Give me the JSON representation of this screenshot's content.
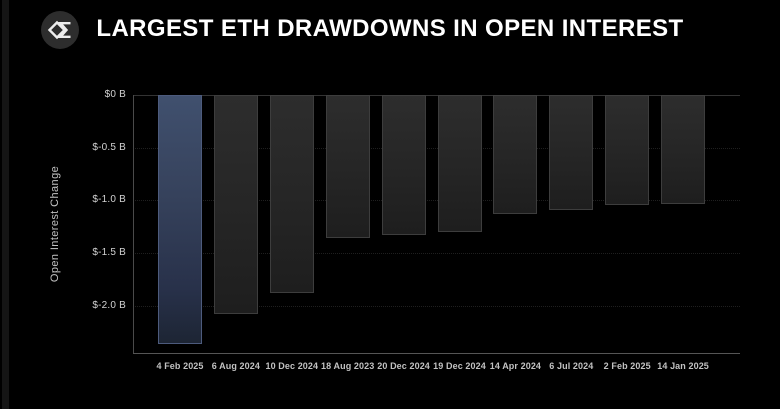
{
  "header": {
    "title": "LARGEST ETH DRAWDOWNS IN OPEN INTEREST",
    "logo_icon": "sigma-diamond-logo"
  },
  "chart_data": {
    "type": "bar",
    "title": "LARGEST ETH DRAWDOWNS IN OPEN INTEREST",
    "xlabel": "",
    "ylabel": "Open Interest Change",
    "unit": "billions USD",
    "categories": [
      "4 Feb 2025",
      "6 Aug 2024",
      "10 Dec 2024",
      "18 Aug 2023",
      "20 Dec 2024",
      "19 Dec 2024",
      "14 Apr 2024",
      "6 Jul 2024",
      "2 Feb 2025",
      "14 Jan 2025"
    ],
    "values": [
      -2.36,
      -2.08,
      -1.88,
      -1.36,
      -1.33,
      -1.3,
      -1.13,
      -1.09,
      -1.04,
      -1.03
    ],
    "highlight_index": 0,
    "ylim": [
      -2.45,
      0
    ],
    "yticks": [
      0,
      -0.5,
      -1.0,
      -1.5,
      -2.0
    ],
    "ytick_labels": [
      "$0 B",
      "$-0.5 B",
      "$-1.0 B",
      "$-1.5 B",
      "$-2.0 B"
    ],
    "grid": true,
    "legend": false,
    "colors": {
      "background": "#000000",
      "highlight_bar": "#36425c",
      "highlight_bar_border": "#4d5b7d",
      "bar": "#262626",
      "bar_border": "#3d3d3d",
      "axis_text": "#c2c2c2",
      "title_text": "#ffffff"
    }
  }
}
